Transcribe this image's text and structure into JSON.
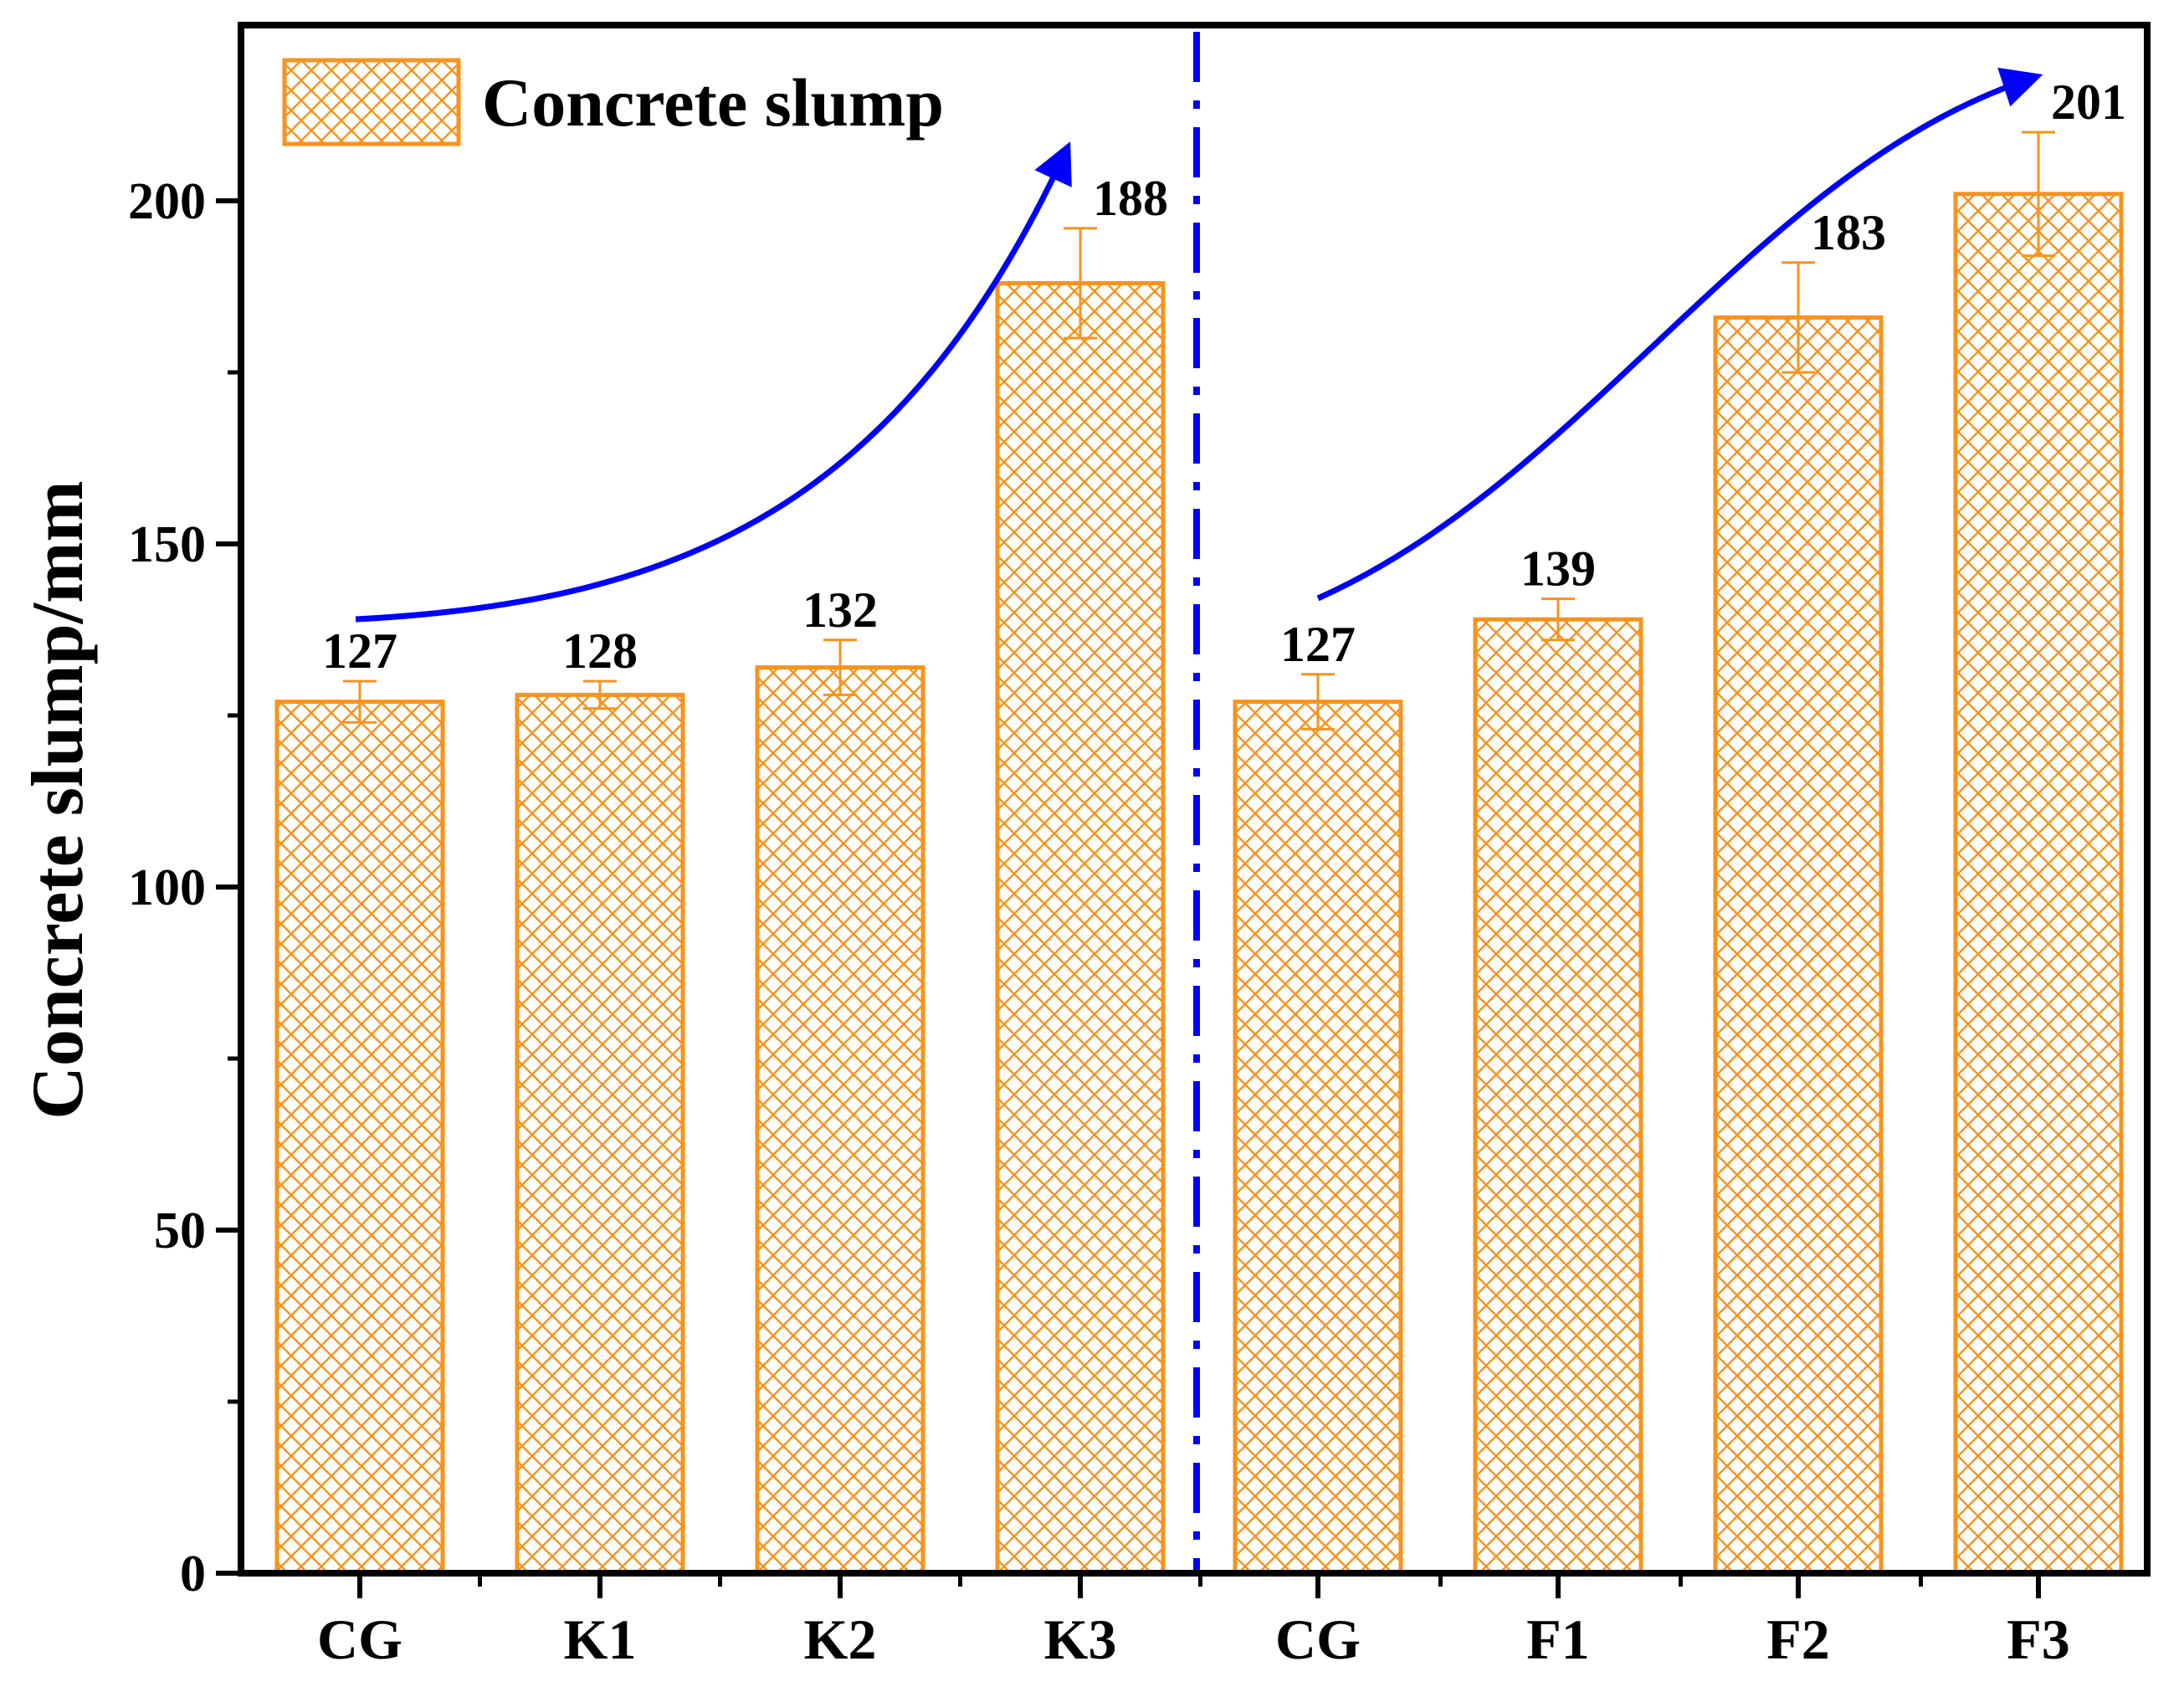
{
  "chart_data": {
    "type": "bar",
    "title": "",
    "xlabel": "",
    "ylabel": "Concrete slump/mm",
    "ylim": [
      0,
      225
    ],
    "yticks": [
      0,
      50,
      100,
      150,
      200
    ],
    "categories": [
      "CG",
      "K1",
      "K2",
      "K3",
      "CG",
      "F1",
      "F2",
      "F3"
    ],
    "series": [
      {
        "name": "Concrete slump",
        "values": [
          127,
          128,
          132,
          188,
          127,
          139,
          183,
          201
        ],
        "errors": [
          3,
          2,
          4,
          8,
          4,
          3,
          8,
          9
        ],
        "data_labels": [
          "127",
          "128",
          "132",
          "188",
          "127",
          "139",
          "183",
          "201"
        ]
      }
    ],
    "legend_position": "top-left",
    "grid": false,
    "groups_separated_by": "dash-dot vertical line",
    "trend_arrows": 2,
    "colors": {
      "bar_edge": "#F7931E",
      "bar_hatch": "#F7931E",
      "error_bar": "#F7931E",
      "divider": "#0000FF",
      "arrow": "#0000FF",
      "axis": "#000000"
    }
  }
}
